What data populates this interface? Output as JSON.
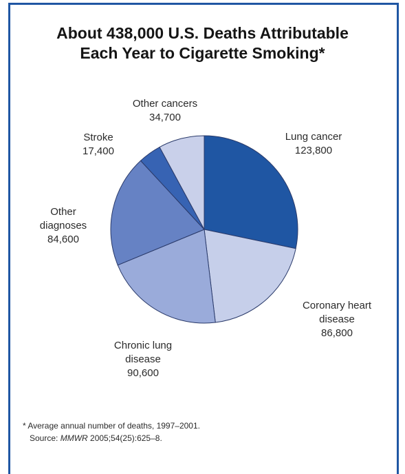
{
  "chart_data": {
    "type": "pie",
    "title": "About 438,000 U.S. Deaths Attributable Each Year to Cigarette Smoking*",
    "title_lines": [
      "About 438,000 U.S. Deaths Attributable",
      "Each Year to Cigarette Smoking*"
    ],
    "slices": [
      {
        "name": "Lung cancer",
        "label_lines": [
          "Lung cancer"
        ],
        "value": 123800,
        "value_text": "123,800",
        "color": "#1f56a3"
      },
      {
        "name": "Coronary heart disease",
        "label_lines": [
          "Coronary heart",
          "disease"
        ],
        "value": 86800,
        "value_text": "86,800",
        "color": "#c6cfea"
      },
      {
        "name": "Chronic lung disease",
        "label_lines": [
          "Chronic lung",
          "disease"
        ],
        "value": 90600,
        "value_text": "90,600",
        "color": "#9aabda"
      },
      {
        "name": "Other diagnoses",
        "label_lines": [
          "Other",
          "diagnoses"
        ],
        "value": 84600,
        "value_text": "84,600",
        "color": "#6682c4"
      },
      {
        "name": "Stroke",
        "label_lines": [
          "Stroke"
        ],
        "value": 17400,
        "value_text": "17,400",
        "color": "#3763b3"
      },
      {
        "name": "Other cancers",
        "label_lines": [
          "Other cancers"
        ],
        "value": 34700,
        "value_text": "34,700",
        "color": "#c9d0ea"
      }
    ]
  },
  "footnote": {
    "line1": "* Average annual number of deaths, 1997–2001.",
    "source_prefix": "Source: ",
    "source_journal": "MMWR",
    "source_citation": " 2005;54(25):625–8."
  },
  "colors": {
    "frame": "#1f56a3",
    "slice_outline": "#2a3a6a"
  }
}
